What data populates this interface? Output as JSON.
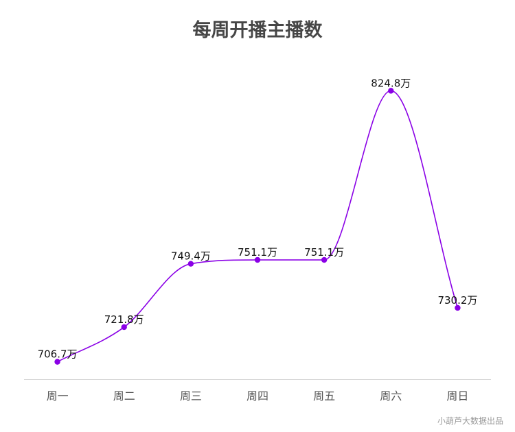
{
  "chart_data": {
    "type": "line",
    "title": "每周开播主播数",
    "categories": [
      "周一",
      "周二",
      "周三",
      "周四",
      "周五",
      "周六",
      "周日"
    ],
    "series": [
      {
        "values": [
          706.7,
          721.8,
          749.4,
          751.1,
          751.1,
          824.8,
          730.2
        ]
      }
    ],
    "data_labels": [
      "706.7万",
      "721.8万",
      "749.4万",
      "751.1万",
      "751.1万",
      "824.8万",
      "730.2万"
    ],
    "xlabel": "",
    "ylabel": "",
    "ylim": [
      703,
      827
    ],
    "smooth": true,
    "grid": false,
    "y_axis_visible": false,
    "line_color": "#8a00e6",
    "point_color": "#8a00e6"
  },
  "credit": "小葫芦大数据出品"
}
